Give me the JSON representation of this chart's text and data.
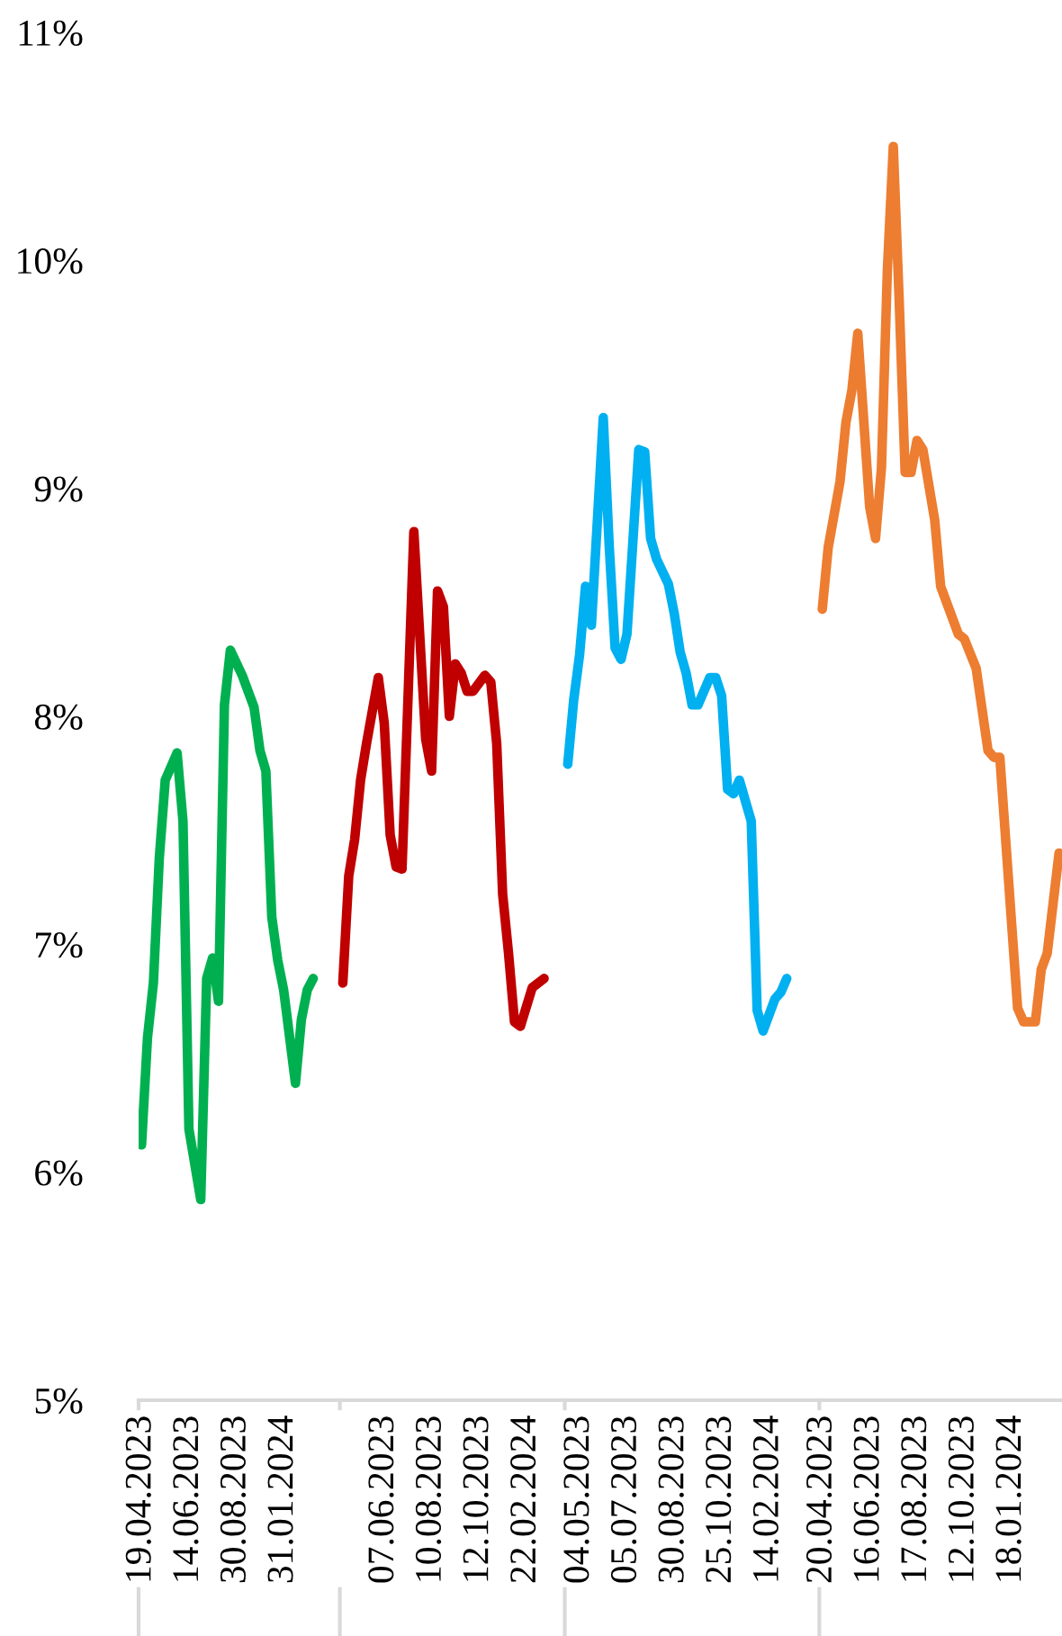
{
  "chart_data": {
    "type": "line",
    "categories": [
      "19.04.2023",
      null,
      null,
      null,
      null,
      null,
      null,
      null,
      "14.06.2023",
      null,
      null,
      null,
      null,
      null,
      null,
      null,
      "30.08.2023",
      null,
      null,
      null,
      null,
      null,
      null,
      null,
      "31.01.2024",
      null,
      null,
      null,
      null,
      null,
      null,
      null,
      null,
      null,
      null,
      null,
      null,
      null,
      null,
      null,
      null,
      "07.06.2023",
      null,
      null,
      null,
      null,
      null,
      null,
      null,
      "10.08.2023",
      null,
      null,
      null,
      null,
      null,
      null,
      null,
      "12.10.2023",
      null,
      null,
      null,
      null,
      null,
      null,
      null,
      "22.02.2024",
      null,
      null,
      null,
      null,
      null,
      null,
      null,
      null,
      "04.05.2023",
      null,
      null,
      null,
      null,
      null,
      null,
      null,
      "05.07.2023",
      null,
      null,
      null,
      null,
      null,
      null,
      null,
      "30.08.2023",
      null,
      null,
      null,
      null,
      null,
      null,
      null,
      "25.10.2023",
      null,
      null,
      null,
      null,
      null,
      null,
      null,
      "14.02.2024",
      null,
      null,
      null,
      null,
      null,
      null,
      null,
      null,
      "20.04.2023",
      null,
      null,
      null,
      null,
      null,
      null,
      null,
      "16.06.2023",
      null,
      null,
      null,
      null,
      null,
      null,
      null,
      "17.08.2023",
      null,
      null,
      null,
      null,
      null,
      null,
      null,
      "12.10.2023",
      null,
      null,
      null,
      null,
      null,
      null,
      null,
      "18.01.2024",
      null,
      null,
      null,
      null,
      null,
      null,
      null,
      null
    ],
    "series": [
      {
        "color": "#00b050",
        "values": [
          6.12,
          6.59,
          6.83,
          7.38,
          7.72,
          null,
          7.84,
          7.54,
          6.19,
          null,
          5.88,
          6.85,
          6.94,
          6.75,
          8.05,
          8.29,
          null,
          8.18,
          null,
          8.04,
          7.85,
          7.76,
          7.12,
          6.93,
          6.8,
          null,
          6.39,
          6.67,
          6.8,
          6.85,
          null,
          null,
          null,
          null,
          null,
          null,
          null,
          null,
          null,
          null,
          null,
          null,
          null,
          null,
          null,
          null,
          null,
          null,
          null,
          null,
          null,
          null,
          null,
          null,
          null,
          null,
          null,
          null,
          null,
          null,
          null,
          null,
          null,
          null,
          null,
          null,
          null,
          null,
          null,
          null,
          null,
          null,
          null,
          null,
          null,
          null,
          null,
          null,
          null,
          null,
          null,
          null,
          null,
          null,
          null,
          null,
          null,
          null,
          null,
          null,
          null,
          null,
          null,
          null,
          null,
          null,
          null,
          null,
          null,
          null,
          null,
          null,
          null,
          null,
          null,
          null,
          null,
          null,
          null,
          null,
          null,
          null,
          null,
          null,
          null,
          null,
          null,
          null,
          null,
          null,
          null,
          null,
          null,
          null,
          null,
          null,
          null,
          null,
          null,
          null,
          null,
          null,
          null,
          null,
          null,
          null,
          null,
          null,
          null,
          null,
          null,
          null,
          null,
          null,
          null,
          null,
          null,
          null,
          null,
          null,
          null,
          null,
          null,
          null,
          null,
          null
        ]
      },
      {
        "color": "#c00000",
        "values": [
          null,
          null,
          null,
          null,
          null,
          null,
          null,
          null,
          null,
          null,
          null,
          null,
          null,
          null,
          null,
          null,
          null,
          null,
          null,
          null,
          null,
          null,
          null,
          null,
          null,
          null,
          null,
          null,
          null,
          null,
          null,
          null,
          null,
          null,
          6.83,
          7.3,
          7.46,
          7.72,
          7.88,
          null,
          8.17,
          7.97,
          7.48,
          7.34,
          7.33,
          null,
          8.81,
          null,
          7.9,
          7.76,
          8.55,
          8.48,
          8.0,
          8.23,
          8.19,
          8.11,
          8.11,
          null,
          8.18,
          8.15,
          7.88,
          7.22,
          6.96,
          6.66,
          6.64,
          null,
          6.81,
          null,
          6.85,
          null,
          null,
          null,
          null,
          null,
          null,
          null,
          null,
          null,
          null,
          null,
          null,
          null,
          null,
          null,
          null,
          null,
          null,
          null,
          null,
          null,
          null,
          null,
          null,
          null,
          null,
          null,
          null,
          null,
          null,
          null,
          null,
          null,
          null,
          null,
          null,
          null,
          null,
          null,
          null,
          null,
          null,
          null,
          null,
          null,
          null,
          null,
          null,
          null,
          null,
          null,
          null,
          null,
          null,
          null,
          null,
          null,
          null,
          null,
          null,
          null,
          null,
          null,
          null,
          null,
          null,
          null,
          null,
          null,
          null,
          null,
          null,
          null,
          null,
          null,
          null,
          null,
          null,
          null,
          null,
          null,
          null,
          null,
          null,
          null,
          null,
          null
        ]
      },
      {
        "color": "#00b0f0",
        "values": [
          null,
          null,
          null,
          null,
          null,
          null,
          null,
          null,
          null,
          null,
          null,
          null,
          null,
          null,
          null,
          null,
          null,
          null,
          null,
          null,
          null,
          null,
          null,
          null,
          null,
          null,
          null,
          null,
          null,
          null,
          null,
          null,
          null,
          null,
          null,
          null,
          null,
          null,
          null,
          null,
          null,
          null,
          null,
          null,
          null,
          null,
          null,
          null,
          null,
          null,
          null,
          null,
          null,
          null,
          null,
          null,
          null,
          null,
          null,
          null,
          null,
          null,
          null,
          null,
          null,
          null,
          null,
          null,
          null,
          null,
          null,
          null,
          7.79,
          8.07,
          8.27,
          8.57,
          8.4,
          null,
          9.31,
          8.75,
          8.3,
          8.25,
          8.36,
          null,
          9.17,
          9.16,
          8.78,
          8.69,
          null,
          8.58,
          8.45,
          8.28,
          8.19,
          8.05,
          8.05,
          null,
          8.17,
          8.17,
          8.09,
          7.68,
          7.66,
          7.72,
          null,
          7.54,
          6.71,
          6.62,
          6.69,
          6.76,
          6.79,
          6.85,
          null,
          null,
          null,
          null,
          null,
          null,
          null,
          null,
          null,
          null,
          null,
          null,
          null,
          null,
          null,
          null,
          null,
          null,
          null,
          null,
          null,
          null,
          null,
          null,
          null,
          null,
          null,
          null,
          null,
          null,
          null,
          null,
          null,
          null,
          null,
          null,
          null,
          null,
          null,
          null,
          null,
          null,
          null,
          null,
          null,
          null
        ]
      },
      {
        "color": "#ed7d31",
        "values": [
          null,
          null,
          null,
          null,
          null,
          null,
          null,
          null,
          null,
          null,
          null,
          null,
          null,
          null,
          null,
          null,
          null,
          null,
          null,
          null,
          null,
          null,
          null,
          null,
          null,
          null,
          null,
          null,
          null,
          null,
          null,
          null,
          null,
          null,
          null,
          null,
          null,
          null,
          null,
          null,
          null,
          null,
          null,
          null,
          null,
          null,
          null,
          null,
          null,
          null,
          null,
          null,
          null,
          null,
          null,
          null,
          null,
          null,
          null,
          null,
          null,
          null,
          null,
          null,
          null,
          null,
          null,
          null,
          null,
          null,
          null,
          null,
          null,
          null,
          null,
          null,
          null,
          null,
          null,
          null,
          null,
          null,
          null,
          null,
          null,
          null,
          null,
          null,
          null,
          null,
          null,
          null,
          null,
          null,
          null,
          null,
          null,
          null,
          null,
          null,
          null,
          null,
          null,
          null,
          null,
          null,
          null,
          null,
          null,
          null,
          null,
          null,
          null,
          null,
          null,
          8.47,
          8.74,
          null,
          9.03,
          9.29,
          9.43,
          9.68,
          null,
          8.92,
          8.78,
          9.09,
          9.96,
          10.5,
          9.82,
          9.07,
          9.07,
          9.21,
          9.17,
          null,
          8.86,
          8.57,
          null,
          null,
          8.36,
          8.34,
          null,
          8.21,
          null,
          7.85,
          7.82,
          7.82,
          null,
          null,
          6.72,
          6.66,
          null,
          6.66,
          6.89,
          6.96,
          null,
          7.4
        ]
      }
    ],
    "ylim": [
      5,
      11
    ],
    "yticks": [
      {
        "value": 5,
        "label": "5%"
      },
      {
        "value": 6,
        "label": "6%"
      },
      {
        "value": 7,
        "label": "7%"
      },
      {
        "value": 8,
        "label": "8%"
      },
      {
        "value": 9,
        "label": "9%"
      },
      {
        "value": 10,
        "label": "10%"
      },
      {
        "value": 11,
        "label": "11%"
      }
    ]
  }
}
